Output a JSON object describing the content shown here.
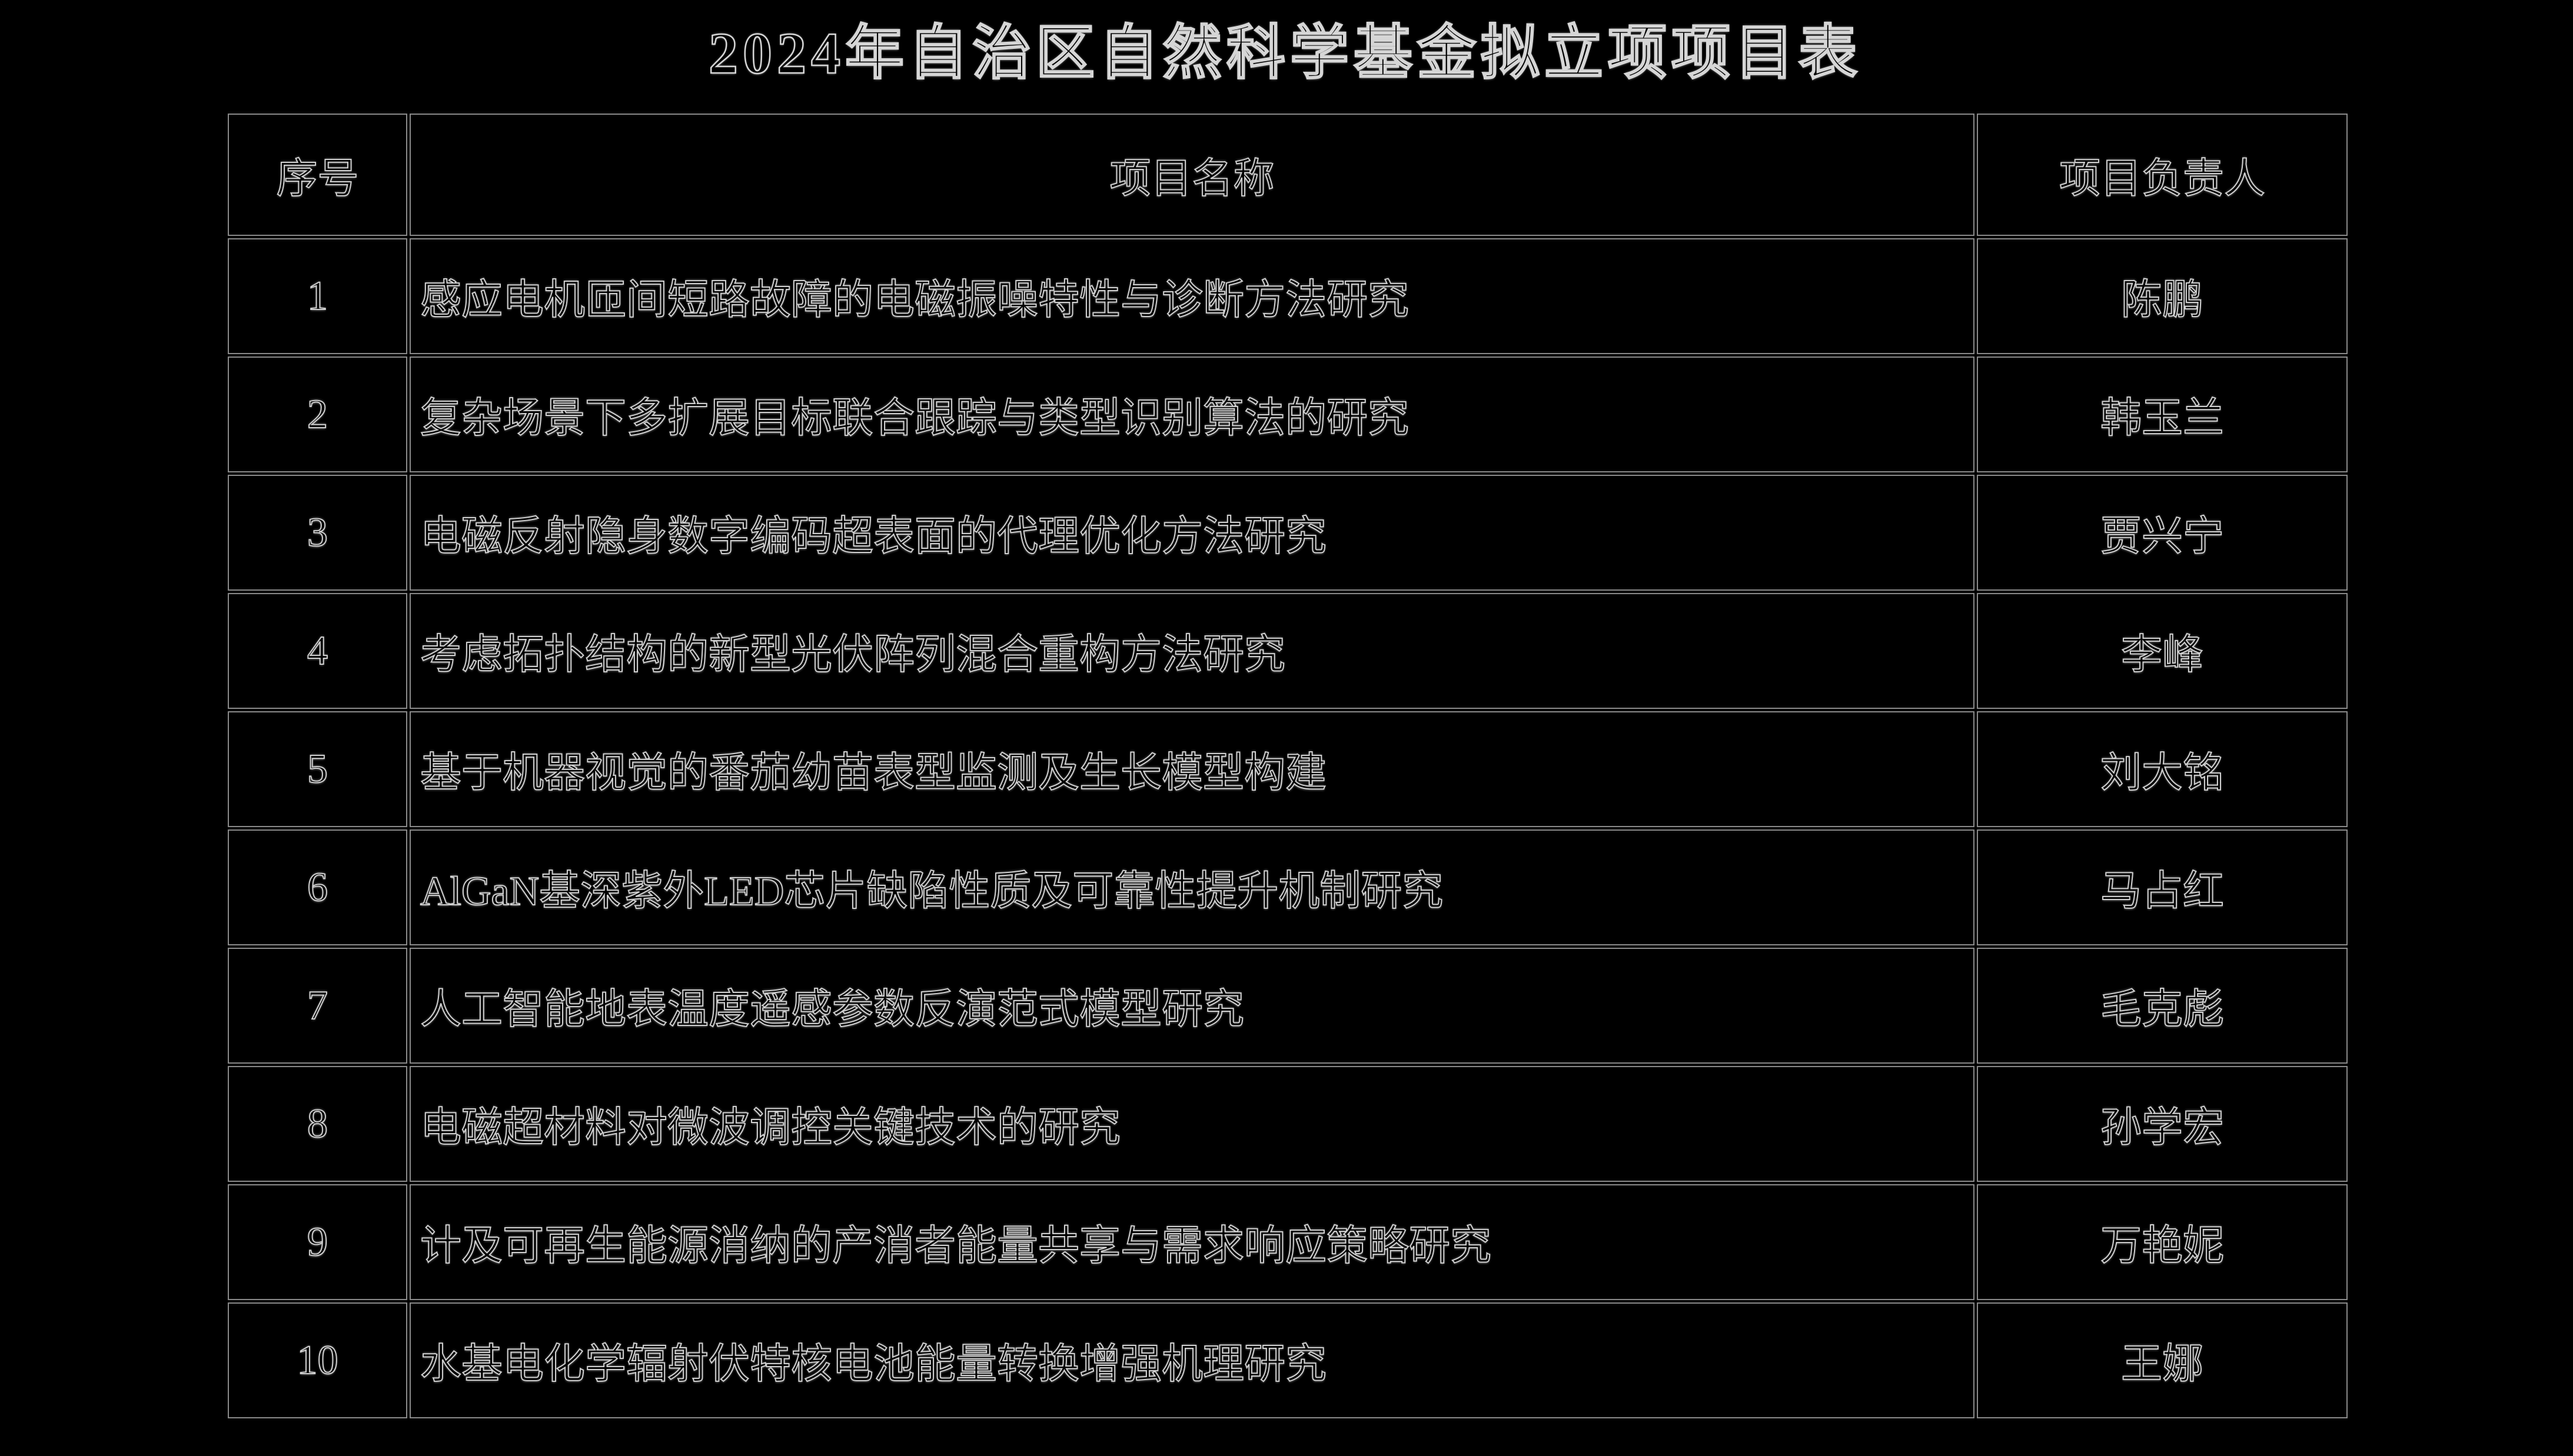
{
  "page_title": "2024年自治区自然科学基金拟立项项目表",
  "colors": {
    "background": "#000000",
    "text_outline": "#cfcfcf",
    "grid_line": "#8a8a8a"
  },
  "table": {
    "columns": [
      {
        "key": "index",
        "label": "序号"
      },
      {
        "key": "name",
        "label": "项目名称"
      },
      {
        "key": "leader",
        "label": "项目负责人"
      }
    ],
    "rows": [
      {
        "index": "1",
        "name": "感应电机匝间短路故障的电磁振噪特性与诊断方法研究",
        "leader": "陈鹏"
      },
      {
        "index": "2",
        "name": "复杂场景下多扩展目标联合跟踪与类型识别算法的研究",
        "leader": "韩玉兰"
      },
      {
        "index": "3",
        "name": "电磁反射隐身数字编码超表面的代理优化方法研究",
        "leader": "贾兴宁"
      },
      {
        "index": "4",
        "name": "考虑拓扑结构的新型光伏阵列混合重构方法研究",
        "leader": "李峰"
      },
      {
        "index": "5",
        "name": "基于机器视觉的番茄幼苗表型监测及生长模型构建",
        "leader": "刘大铭"
      },
      {
        "index": "6",
        "name": "AlGaN基深紫外LED芯片缺陷性质及可靠性提升机制研究",
        "leader": "马占红"
      },
      {
        "index": "7",
        "name": "人工智能地表温度遥感参数反演范式模型研究",
        "leader": "毛克彪"
      },
      {
        "index": "8",
        "name": "电磁超材料对微波调控关键技术的研究",
        "leader": "孙学宏"
      },
      {
        "index": "9",
        "name": "计及可再生能源消纳的产消者能量共享与需求响应策略研究",
        "leader": "万艳妮"
      },
      {
        "index": "10",
        "name": "水基电化学辐射伏特核电池能量转换增强机理研究",
        "leader": "王娜"
      }
    ]
  }
}
